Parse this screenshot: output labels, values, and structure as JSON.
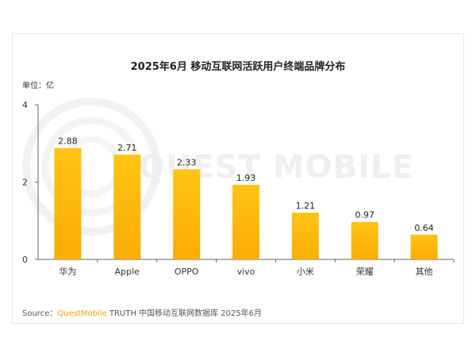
{
  "title": "2025年6月 移动互联网活跃用户终端品牌分布",
  "unit_label": "单位：亿",
  "watermark": "QUEST MOBILE",
  "source": {
    "prefix": "Source：",
    "brand": "QuestMobile",
    "suffix": " TRUTH 中国移动互联网数据库 2025年6月"
  },
  "colors": {
    "bar_top": "#ffc414",
    "bar_bottom": "#f9ac05",
    "axis": "#666666",
    "watermark": "#f0f0f0",
    "brand": "#f0a400"
  },
  "chart_data": {
    "type": "bar",
    "title": "2025年6月 移动互联网活跃用户终端品牌分布",
    "ylabel": "单位：亿",
    "xlabel": "",
    "categories": [
      "华为",
      "Apple",
      "OPPO",
      "vivo",
      "小米",
      "荣耀",
      "其他"
    ],
    "values": [
      2.88,
      2.71,
      2.33,
      1.93,
      1.21,
      0.97,
      0.64
    ],
    "value_labels": [
      "2.88",
      "2.71",
      "2.33",
      "1.93",
      "1.21",
      "0.97",
      "0.64"
    ],
    "ylim": [
      0,
      4
    ],
    "yticks": [
      0,
      2,
      4
    ],
    "grid": false,
    "legend": "none"
  }
}
